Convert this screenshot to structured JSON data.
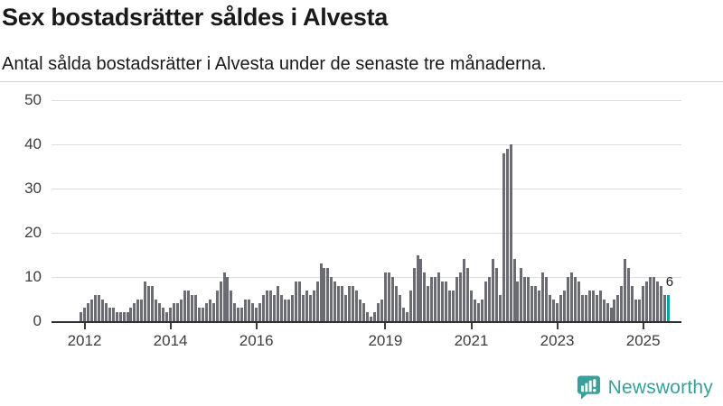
{
  "header": {
    "title": "Sex bostadsrätter såldes i Alvesta",
    "subtitle": "Antal sålda bostadsrätter i Alvesta under de senaste tre månaderna."
  },
  "chart_data": {
    "type": "bar",
    "title": "Sex bostadsrätter såldes i Alvesta",
    "subtitle": "Antal sålda bostadsrätter i Alvesta under de senaste tre månaderna.",
    "ylabel": "",
    "xlabel": "",
    "ylim": [
      0,
      50
    ],
    "grid": true,
    "frequency": "monthly",
    "start_month": "2011-12",
    "end_month": "2025-08",
    "yticks": [
      0,
      10,
      20,
      30,
      40,
      50
    ],
    "xticks": [
      {
        "label": "2012",
        "index": 1
      },
      {
        "label": "2014",
        "index": 25
      },
      {
        "label": "2016",
        "index": 49
      },
      {
        "label": "2019",
        "index": 85
      },
      {
        "label": "2021",
        "index": 109
      },
      {
        "label": "2023",
        "index": 133
      },
      {
        "label": "2025",
        "index": 157
      }
    ],
    "values": [
      2,
      3,
      4,
      5,
      6,
      6,
      5,
      4,
      3,
      3,
      2,
      2,
      2,
      2,
      3,
      4,
      5,
      5,
      9,
      8,
      8,
      5,
      4,
      3,
      2,
      3,
      4,
      4,
      5,
      7,
      7,
      6,
      6,
      3,
      3,
      4,
      5,
      4,
      7,
      9,
      11,
      10,
      7,
      4,
      3,
      3,
      5,
      5,
      4,
      3,
      4,
      6,
      7,
      7,
      6,
      8,
      6,
      5,
      5,
      6,
      9,
      9,
      6,
      7,
      6,
      7,
      9,
      13,
      12,
      12,
      10,
      9,
      8,
      8,
      6,
      8,
      8,
      7,
      5,
      4,
      2,
      1,
      2,
      4,
      5,
      11,
      11,
      10,
      8,
      6,
      3,
      2,
      7,
      12,
      15,
      14,
      11,
      8,
      10,
      10,
      11,
      9,
      9,
      7,
      7,
      10,
      11,
      14,
      12,
      7,
      5,
      4,
      5,
      9,
      10,
      14,
      12,
      6,
      38,
      39,
      40,
      14,
      9,
      12,
      10,
      10,
      8,
      8,
      7,
      11,
      10,
      6,
      5,
      4,
      6,
      7,
      10,
      11,
      10,
      9,
      6,
      6,
      7,
      7,
      6,
      7,
      5,
      4,
      3,
      5,
      6,
      8,
      14,
      12,
      8,
      5,
      5,
      8,
      9,
      10,
      10,
      9,
      8,
      6,
      6
    ],
    "highlight_last": true,
    "highlight_value_label": "6",
    "colors": {
      "bar": "#6b6b73",
      "highlight": "#00a5a5"
    }
  },
  "footer": {
    "brand": "Newsworthy",
    "brand_color": "#38a099",
    "logo_icon": "bar-chart-speech-bubble-icon"
  }
}
